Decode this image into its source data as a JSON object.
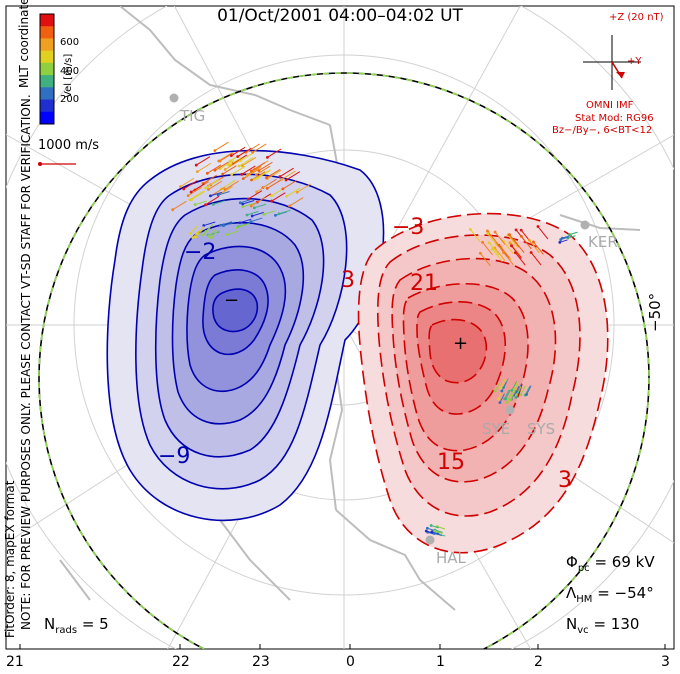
{
  "title": "01/Oct/2001 04:00–04:02 UT",
  "coord_label": "MLT coordinates",
  "colorbar": {
    "label": "Vel [m/s]",
    "ticks": [
      "600",
      "400",
      "200"
    ],
    "colors": [
      "#e01010",
      "#f06010",
      "#f0a020",
      "#e0d020",
      "#90d040",
      "#40b080",
      "#3070c0",
      "#2030d0",
      "#0000ff"
    ]
  },
  "vector_scale": "1000 m/s",
  "imf": {
    "bz_label": "+Z (20 nT)",
    "by_label": "+Y",
    "source": "OMNI IMF",
    "model": "Stat Mod: RG96",
    "condition": "Bz−/By−, 6<BT<12"
  },
  "stations": [
    "TIG",
    "KER",
    "SYE",
    "SYS",
    "HAL"
  ],
  "latitude_label": "−50°",
  "mlt_ticks": [
    "21",
    "22",
    "23",
    "0",
    "1",
    "2",
    "3"
  ],
  "contour_labels": [
    "−2",
    "−9",
    "3",
    "−3",
    "21",
    "15",
    "3"
  ],
  "cell_markers": {
    "min": "−",
    "max": "+"
  },
  "stats": {
    "phi_pc_symbol": "Φ",
    "phi_pc_sub": "pc",
    "phi_pc_value": "= 69 kV",
    "lambda_hm_symbol": "Λ",
    "lambda_hm_sub": "HM",
    "lambda_hm_value": "= −54°",
    "n_vc_symbol": "N",
    "n_vc_sub": "vc",
    "n_vc_value": "= 130",
    "n_rads_symbol": "N",
    "n_rads_sub": "rads",
    "n_rads_value": "= 5"
  },
  "notes": {
    "preview": "NOTE: FOR PREVIEW PURPOSES ONLY. PLEASE CONTACT VT-SD STAFF FOR VERIFICATION.",
    "fit": "FitOrder: 8, mapEX format"
  },
  "colors": {
    "negative": "#0000b0",
    "positive": "#d00000",
    "boundary": "#8fd850"
  }
}
